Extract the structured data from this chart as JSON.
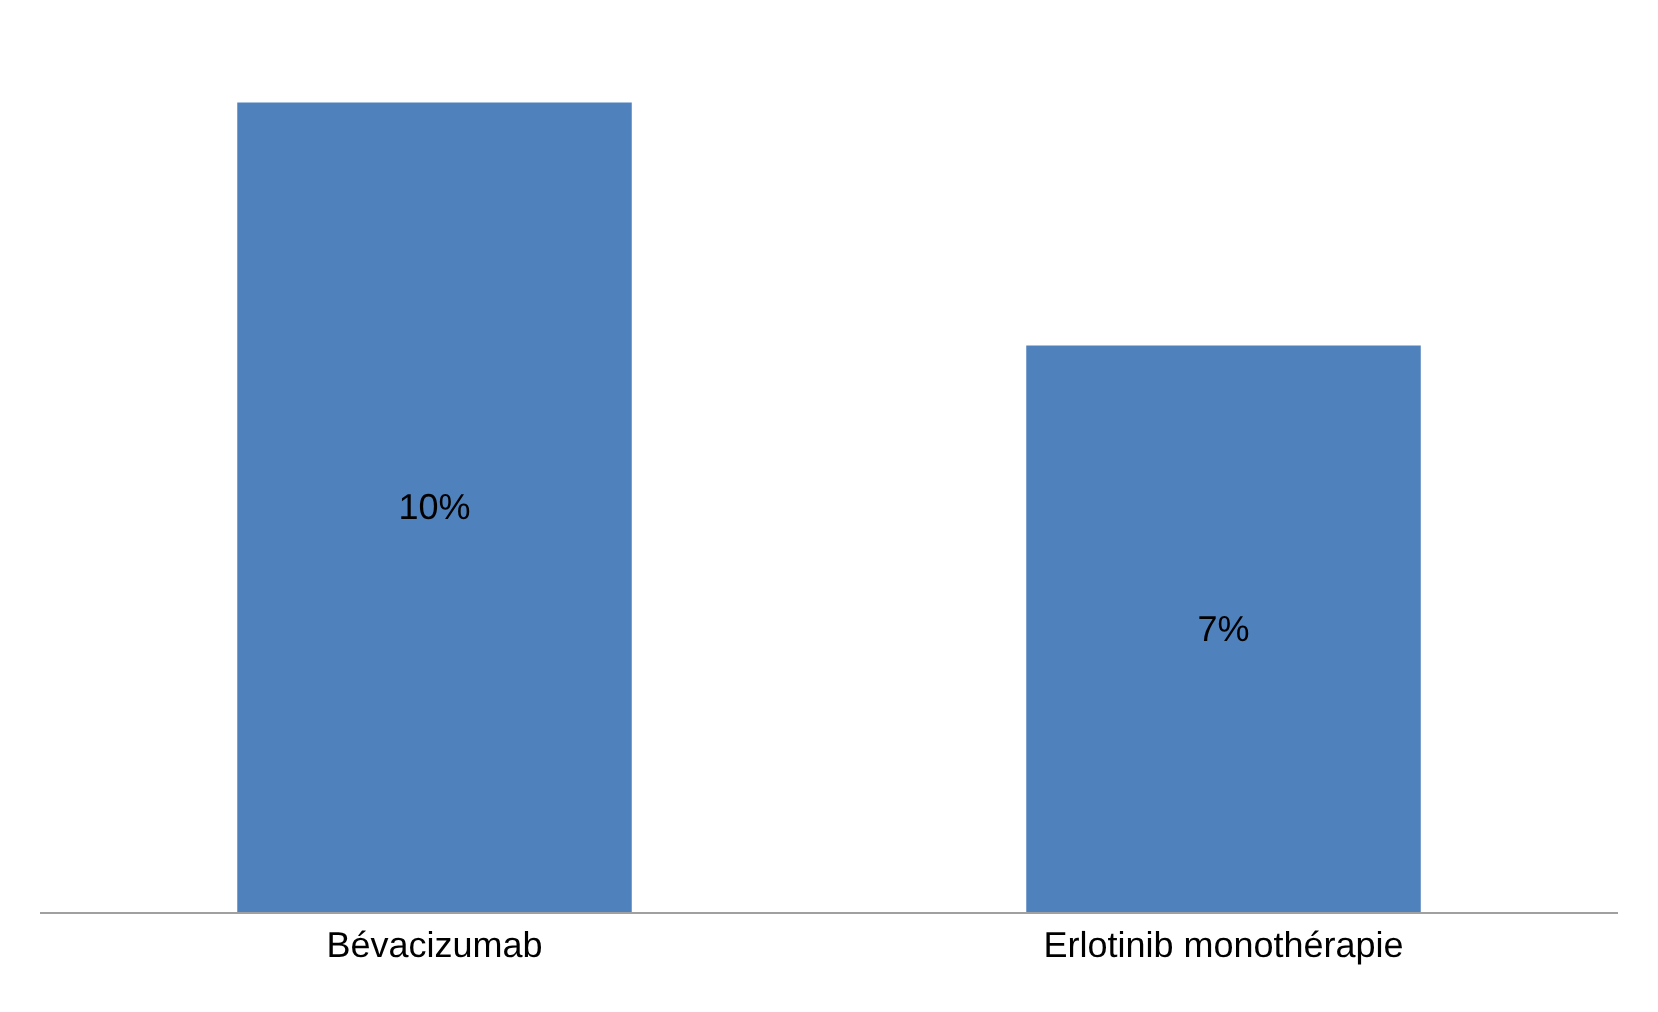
{
  "chart_data": {
    "type": "bar",
    "categories": [
      "Bévacizumab",
      "Erlotinib monothérapie"
    ],
    "values": [
      10,
      7
    ],
    "value_labels": [
      "10%",
      "7%"
    ],
    "color": "#4f81bd",
    "legend": false
  }
}
